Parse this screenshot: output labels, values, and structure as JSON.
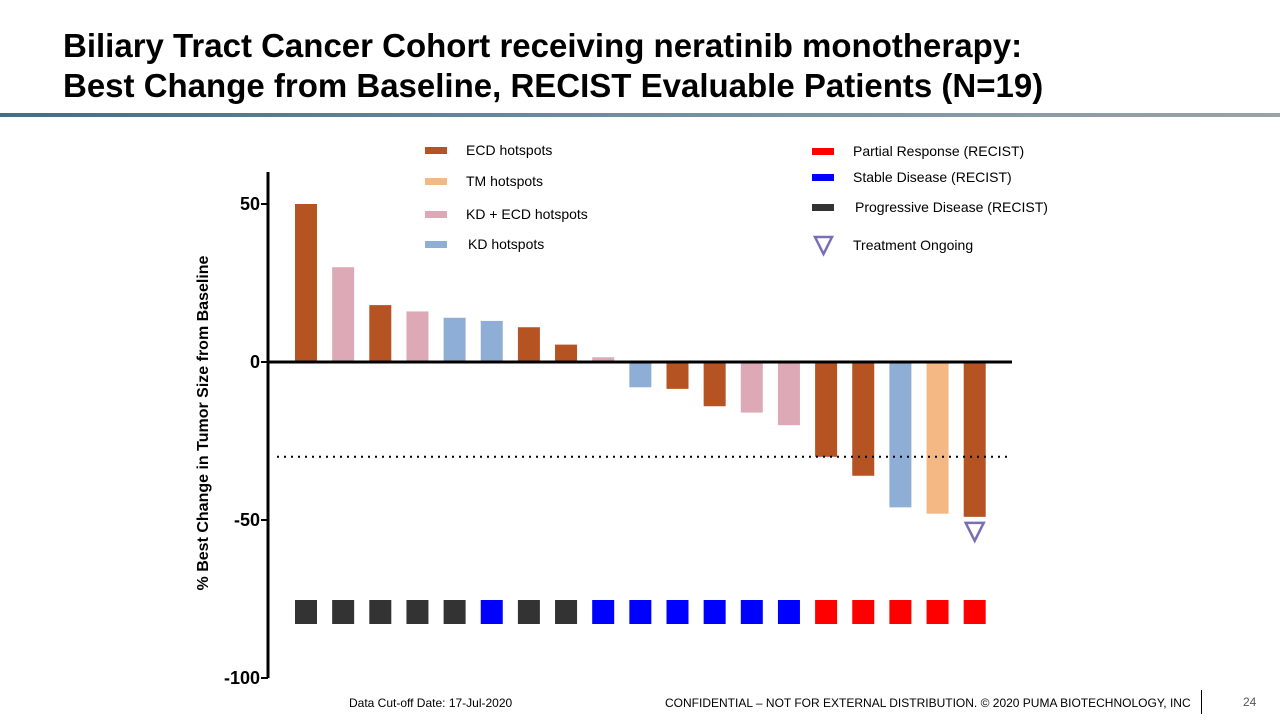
{
  "slide": {
    "title_line1": "Biliary Tract Cancer Cohort receiving neratinib monotherapy:",
    "title_line2": "Best Change from Baseline, RECIST Evaluable Patients (N=19)",
    "footer_left": "Data Cut-off Date: 17-Jul-2020",
    "footer_right": "CONFIDENTIAL – NOT FOR EXTERNAL DISTRIBUTION. © 2020 PUMA BIOTECHNOLOGY, INC",
    "page_number": "24"
  },
  "colors": {
    "ECD": "#b55322",
    "TM": "#f3b883",
    "KDECD": "#dea9b7",
    "KD": "#8eaed6",
    "PR": "#ff0000",
    "SD": "#0000ff",
    "PD": "#333333",
    "ongoing": "#7a6fb5",
    "title_rule": "#4a7890"
  },
  "chart_data": {
    "type": "bar",
    "ylabel": "% Best Change in Tumor Size from Baseline",
    "ylim": [
      -100,
      60
    ],
    "yticks": [
      50,
      0,
      -50,
      -100
    ],
    "reference_line": -30,
    "values": [
      50,
      30,
      18,
      16,
      14,
      13,
      11,
      5.5,
      1.5,
      -8,
      -8.5,
      -14,
      -16,
      -20,
      -30,
      -36,
      -46,
      -48,
      -49
    ],
    "mutation": [
      "ECD",
      "KDECD",
      "ECD",
      "KDECD",
      "KD",
      "KD",
      "ECD",
      "ECD",
      "KDECD",
      "KD",
      "ECD",
      "ECD",
      "KDECD",
      "KDECD",
      "ECD",
      "ECD",
      "KD",
      "TM",
      "ECD"
    ],
    "response": [
      "PD",
      "PD",
      "PD",
      "PD",
      "PD",
      "SD",
      "PD",
      "PD",
      "SD",
      "SD",
      "SD",
      "SD",
      "SD",
      "SD",
      "PR",
      "PR",
      "PR",
      "PR",
      "PR"
    ],
    "ongoing": [
      false,
      false,
      false,
      false,
      false,
      false,
      false,
      false,
      false,
      false,
      false,
      false,
      false,
      false,
      false,
      false,
      false,
      false,
      true
    ],
    "legend_mutation": [
      {
        "key": "ECD",
        "label": "ECD hotspots"
      },
      {
        "key": "TM",
        "label": "TM hotspots"
      },
      {
        "key": "KDECD",
        "label": "KD + ECD hotspots"
      },
      {
        "key": "KD",
        "label": "KD hotspots"
      }
    ],
    "legend_response": [
      {
        "key": "PR",
        "label": "Partial Response (RECIST)"
      },
      {
        "key": "SD",
        "label": "Stable Disease (RECIST)"
      },
      {
        "key": "PD",
        "label": "Progressive Disease (RECIST)"
      },
      {
        "key": "ongoing",
        "label": "Treatment Ongoing"
      }
    ]
  }
}
